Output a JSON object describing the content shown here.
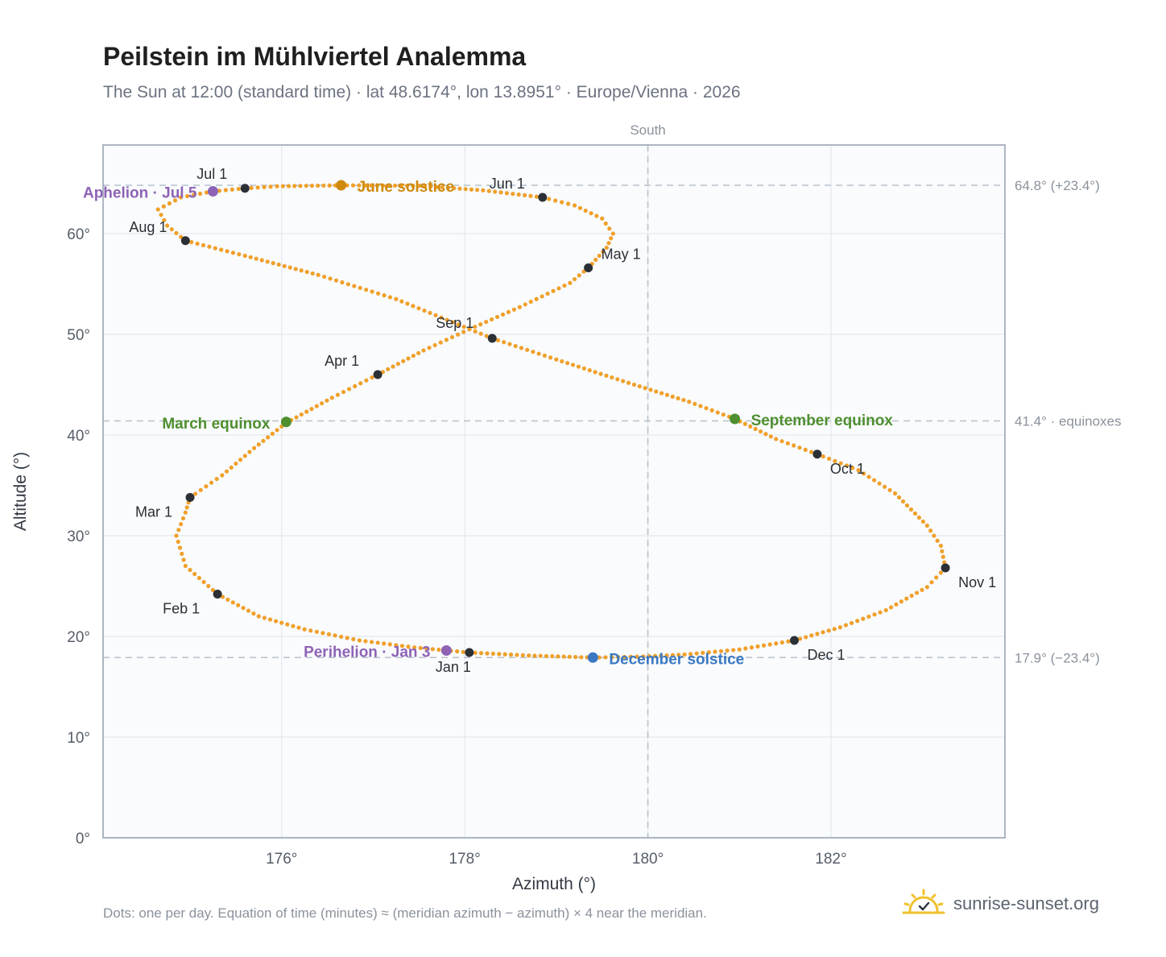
{
  "header": {
    "title": "Peilstein im Mühlviertel Analemma",
    "subtitle": "The Sun at 12:00 (standard time) · lat 48.6174°, lon 13.8951° · Europe/Vienna · 2026"
  },
  "footer": {
    "note": "Dots: one per day. Equation of time (minutes) ≈ (meridian azimuth − azimuth) × 4 near the meridian.",
    "brand": "sunrise-sunset.org"
  },
  "chart_data": {
    "type": "scatter",
    "xlabel": "Azimuth (°)",
    "ylabel": "Altitude (°)",
    "xlim": [
      174.05,
      183.9
    ],
    "ylim": [
      0,
      68.8
    ],
    "x_ticks": [
      {
        "value": 176,
        "label": "176°"
      },
      {
        "value": 178,
        "label": "178°"
      },
      {
        "value": 180,
        "label": "180°"
      },
      {
        "value": 182,
        "label": "182°"
      }
    ],
    "y_ticks": [
      {
        "value": 0,
        "label": "0°"
      },
      {
        "value": 10,
        "label": "10°"
      },
      {
        "value": 20,
        "label": "20°"
      },
      {
        "value": 30,
        "label": "30°"
      },
      {
        "value": 40,
        "label": "40°"
      },
      {
        "value": 50,
        "label": "50°"
      },
      {
        "value": 60,
        "label": "60°"
      }
    ],
    "grid": true,
    "meridian": {
      "azimuth": 180,
      "label": "South"
    },
    "reference_lines": [
      {
        "altitude": 64.8,
        "label": "64.8° (+23.4°)"
      },
      {
        "altitude": 41.4,
        "label": "41.4° · equinoxes"
      },
      {
        "altitude": 17.9,
        "label": "17.9° (−23.4°)"
      }
    ],
    "series": [
      {
        "marker": "dot per day",
        "color": "#f0a02a",
        "points": [
          [
            178.05,
            18.4
          ],
          [
            177.45,
            18.9
          ],
          [
            176.85,
            19.6
          ],
          [
            176.25,
            20.7
          ],
          [
            175.75,
            22.0
          ],
          [
            175.3,
            24.2
          ],
          [
            174.95,
            27.0
          ],
          [
            174.85,
            30.0
          ],
          [
            174.95,
            32.3
          ],
          [
            175.0,
            33.8
          ],
          [
            175.35,
            36.0
          ],
          [
            175.7,
            38.7
          ],
          [
            176.05,
            41.2
          ],
          [
            176.55,
            43.7
          ],
          [
            177.05,
            46.0
          ],
          [
            177.55,
            48.4
          ],
          [
            178.05,
            50.5
          ],
          [
            178.6,
            52.7
          ],
          [
            179.15,
            55.1
          ],
          [
            179.35,
            56.6
          ],
          [
            179.55,
            58.6
          ],
          [
            179.62,
            60.0
          ],
          [
            179.5,
            61.5
          ],
          [
            179.2,
            62.8
          ],
          [
            178.85,
            63.6
          ],
          [
            178.2,
            64.3
          ],
          [
            177.5,
            64.75
          ],
          [
            176.65,
            64.8
          ],
          [
            175.95,
            64.7
          ],
          [
            175.6,
            64.5
          ],
          [
            175.25,
            64.2
          ],
          [
            174.9,
            63.6
          ],
          [
            174.65,
            62.4
          ],
          [
            174.75,
            60.8
          ],
          [
            174.95,
            59.3
          ],
          [
            175.6,
            57.8
          ],
          [
            176.4,
            55.9
          ],
          [
            177.25,
            53.5
          ],
          [
            178.3,
            49.6
          ],
          [
            179.0,
            47.5
          ],
          [
            179.85,
            45.0
          ],
          [
            180.45,
            43.3
          ],
          [
            180.95,
            41.6
          ],
          [
            181.4,
            39.6
          ],
          [
            181.85,
            38.1
          ],
          [
            182.3,
            36.5
          ],
          [
            182.7,
            34.2
          ],
          [
            183.05,
            31.0
          ],
          [
            183.2,
            29.0
          ],
          [
            183.25,
            26.8
          ],
          [
            183.05,
            24.9
          ],
          [
            182.6,
            22.6
          ],
          [
            182.1,
            20.9
          ],
          [
            181.6,
            19.6
          ],
          [
            181.0,
            18.7
          ],
          [
            180.4,
            18.2
          ],
          [
            179.95,
            18.0
          ],
          [
            179.4,
            17.9
          ],
          [
            178.7,
            18.1
          ],
          [
            178.05,
            18.4
          ]
        ]
      }
    ],
    "month_markers": [
      {
        "label": "Jan 1",
        "x": 178.05,
        "y": 18.4
      },
      {
        "label": "Feb 1",
        "x": 175.3,
        "y": 24.2
      },
      {
        "label": "Mar 1",
        "x": 175.0,
        "y": 33.8
      },
      {
        "label": "Apr 1",
        "x": 177.05,
        "y": 46.0
      },
      {
        "label": "May 1",
        "x": 179.35,
        "y": 56.6
      },
      {
        "label": "Jun 1",
        "x": 178.85,
        "y": 63.6
      },
      {
        "label": "Jul 1",
        "x": 175.6,
        "y": 64.5
      },
      {
        "label": "Aug 1",
        "x": 174.95,
        "y": 59.3
      },
      {
        "label": "Sep 1",
        "x": 178.3,
        "y": 49.6
      },
      {
        "label": "Oct 1",
        "x": 181.85,
        "y": 38.1
      },
      {
        "label": "Nov 1",
        "x": 183.25,
        "y": 26.8
      },
      {
        "label": "Dec 1",
        "x": 181.6,
        "y": 19.6
      }
    ],
    "events": [
      {
        "label": "Perihelion · Jan 3",
        "x": 177.8,
        "y": 18.6,
        "color": "#8e63b5"
      },
      {
        "label": "March equinox",
        "x": 176.05,
        "y": 41.3,
        "color": "#4f8f2f"
      },
      {
        "label": "June solstice",
        "x": 176.65,
        "y": 64.8,
        "color": "#cf8a0e"
      },
      {
        "label": "Aphelion · Jul 5",
        "x": 175.25,
        "y": 64.2,
        "color": "#8e63b5"
      },
      {
        "label": "September equinox",
        "x": 180.95,
        "y": 41.6,
        "color": "#4f8f2f"
      },
      {
        "label": "December solstice",
        "x": 179.4,
        "y": 17.9,
        "color": "#3a78c2"
      }
    ]
  }
}
